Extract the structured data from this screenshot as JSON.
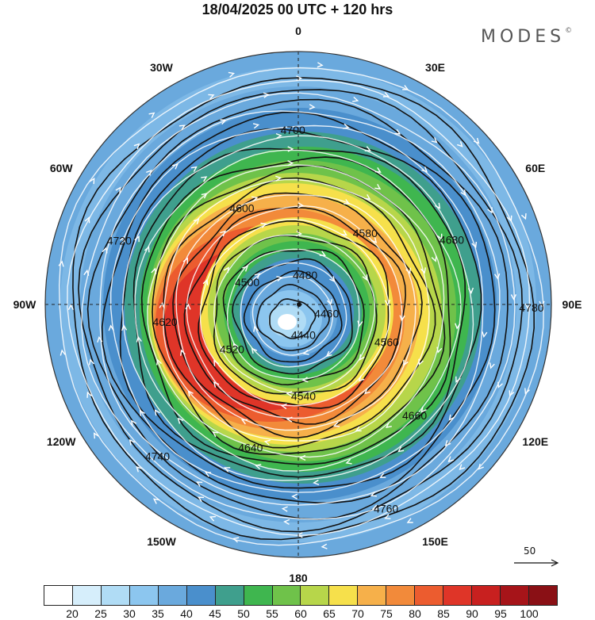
{
  "title": "18/04/2025  00 UTC  + 120 hrs",
  "brand": "MODES",
  "brand_mark": "©",
  "longitude_labels": [
    {
      "label": "0",
      "angle": 0
    },
    {
      "label": "30E",
      "angle": 30
    },
    {
      "label": "60E",
      "angle": 60
    },
    {
      "label": "90E",
      "angle": 90
    },
    {
      "label": "120E",
      "angle": 120
    },
    {
      "label": "150E",
      "angle": 150
    },
    {
      "label": "180",
      "angle": 180
    },
    {
      "label": "150W",
      "angle": 210
    },
    {
      "label": "120W",
      "angle": 240
    },
    {
      "label": "90W",
      "angle": 270
    },
    {
      "label": "60W",
      "angle": 300
    },
    {
      "label": "30W",
      "angle": 330
    }
  ],
  "contour_labels": [
    "4780",
    "4760",
    "4740",
    "4720",
    "4700",
    "4680",
    "4660",
    "4640",
    "4620",
    "4600",
    "4580",
    "4560",
    "4540",
    "4520",
    "4500",
    "4480",
    "4460",
    "4440"
  ],
  "colorbar": {
    "colors": [
      "#ffffff",
      "#d6eefb",
      "#b0dcf5",
      "#8cc6ef",
      "#6aa9dd",
      "#4a8fcc",
      "#3f9f8d",
      "#3fb64f",
      "#6fc24a",
      "#b7d64a",
      "#f6e04b",
      "#f6b04a",
      "#f28a3a",
      "#ec5c2f",
      "#df3528",
      "#c8201f",
      "#a61419",
      "#8a1015"
    ],
    "labels": [
      "20",
      "25",
      "30",
      "35",
      "40",
      "45",
      "50",
      "55",
      "60",
      "65",
      "70",
      "75",
      "80",
      "85",
      "90",
      "95",
      "100"
    ]
  },
  "vector_reference": "50"
}
